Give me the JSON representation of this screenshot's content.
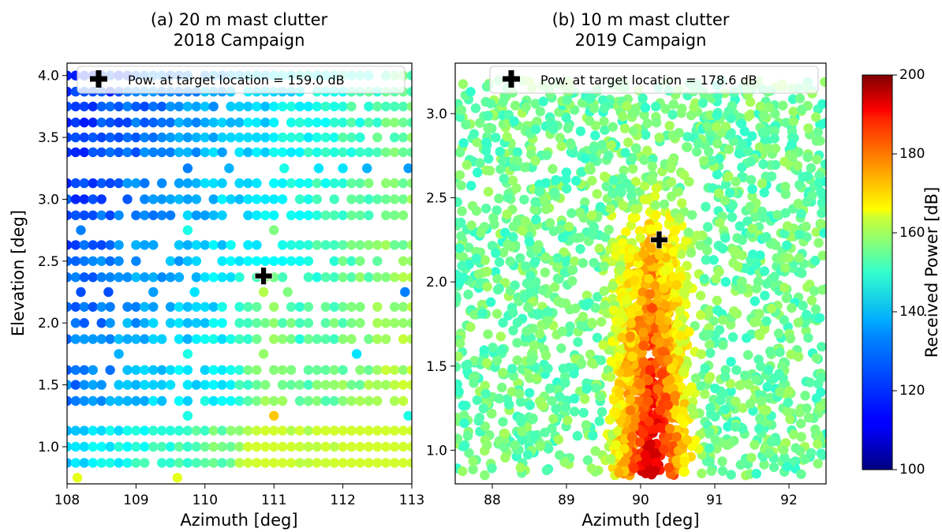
{
  "colormap": "jet",
  "chart_data": [
    {
      "type": "scatter",
      "title_line1": "(a) 20 m mast clutter",
      "title_line2": "2018 Campaign",
      "xlabel": "Azimuth [deg]",
      "ylabel": "Elevation [deg]",
      "xlim": [
        108,
        113
      ],
      "ylim": [
        0.7,
        4.1
      ],
      "xticks": [
        "108",
        "109",
        "110",
        "111",
        "112",
        "113"
      ],
      "yticks": [
        "1.0",
        "1.5",
        "2.0",
        "2.5",
        "3.0",
        "3.5",
        "4.0"
      ],
      "legend_text": "Pow. at target location = 159.0 dB",
      "legend_position": "top",
      "target": {
        "azimuth": 110.85,
        "elevation": 2.38,
        "power_db": 159.0
      },
      "elevation_rows": [
        0.87,
        1.0,
        1.13,
        1.37,
        1.5,
        1.62,
        1.87,
        2.0,
        2.13,
        2.37,
        2.5,
        2.63,
        2.87,
        3.0,
        3.13,
        3.38,
        3.5,
        3.62,
        3.75,
        3.87,
        4.0
      ],
      "azimuth_step": 0.125,
      "power_range_db": [
        115,
        158
      ],
      "sparse_points": [
        {
          "azimuth": 108.15,
          "elevation": 0.75,
          "power_db": 160
        },
        {
          "azimuth": 109.6,
          "elevation": 0.75,
          "power_db": 160
        },
        {
          "azimuth": 109.75,
          "elevation": 1.25,
          "power_db": 140
        },
        {
          "azimuth": 111.0,
          "elevation": 1.25,
          "power_db": 168
        },
        {
          "azimuth": 112.95,
          "elevation": 1.25,
          "power_db": 140
        },
        {
          "azimuth": 108.75,
          "elevation": 1.75,
          "power_db": 130
        },
        {
          "azimuth": 109.75,
          "elevation": 1.75,
          "power_db": 140
        },
        {
          "azimuth": 110.85,
          "elevation": 1.75,
          "power_db": 152
        },
        {
          "azimuth": 112.2,
          "elevation": 1.75,
          "power_db": 135
        },
        {
          "azimuth": 108.2,
          "elevation": 2.25,
          "power_db": 120
        },
        {
          "azimuth": 108.6,
          "elevation": 2.25,
          "power_db": 120
        },
        {
          "azimuth": 109.25,
          "elevation": 2.25,
          "power_db": 128
        },
        {
          "azimuth": 109.85,
          "elevation": 2.25,
          "power_db": 135
        },
        {
          "azimuth": 110.85,
          "elevation": 2.25,
          "power_db": 155
        },
        {
          "azimuth": 111.2,
          "elevation": 2.25,
          "power_db": 150
        },
        {
          "azimuth": 112.9,
          "elevation": 2.25,
          "power_db": 125
        },
        {
          "azimuth": 108.2,
          "elevation": 2.75,
          "power_db": 125
        },
        {
          "azimuth": 109.75,
          "elevation": 2.75,
          "power_db": 140
        },
        {
          "azimuth": 111.0,
          "elevation": 2.75,
          "power_db": 150
        },
        {
          "azimuth": 109.75,
          "elevation": 3.25,
          "power_db": 125
        },
        {
          "azimuth": 110.35,
          "elevation": 3.25,
          "power_db": 130
        },
        {
          "azimuth": 111.15,
          "elevation": 3.25,
          "power_db": 140
        },
        {
          "azimuth": 111.65,
          "elevation": 3.25,
          "power_db": 135
        },
        {
          "azimuth": 112.0,
          "elevation": 3.25,
          "power_db": 135
        },
        {
          "azimuth": 112.35,
          "elevation": 3.25,
          "power_db": 130
        },
        {
          "azimuth": 112.95,
          "elevation": 3.25,
          "power_db": 128
        }
      ]
    },
    {
      "type": "scatter",
      "title_line1": "(b) 10 m mast clutter",
      "title_line2": "2019 Campaign",
      "xlabel": "Azimuth [deg]",
      "ylabel": "",
      "xlim": [
        87.5,
        92.5
      ],
      "ylim": [
        0.8,
        3.3
      ],
      "xticks": [
        "88",
        "89",
        "90",
        "91",
        "92"
      ],
      "yticks": [
        "1.0",
        "1.5",
        "2.0",
        "2.5",
        "3.0"
      ],
      "legend_text": "Pow. at target location = 178.6 dB",
      "legend_position": "top",
      "target": {
        "azimuth": 90.25,
        "elevation": 2.25,
        "power_db": 178.6
      },
      "power_range_db": [
        138,
        192
      ]
    }
  ],
  "colorbar": {
    "label": "Received Power [dB]",
    "min": 100,
    "max": 200,
    "ticks": [
      "100",
      "120",
      "140",
      "160",
      "180",
      "200"
    ]
  }
}
